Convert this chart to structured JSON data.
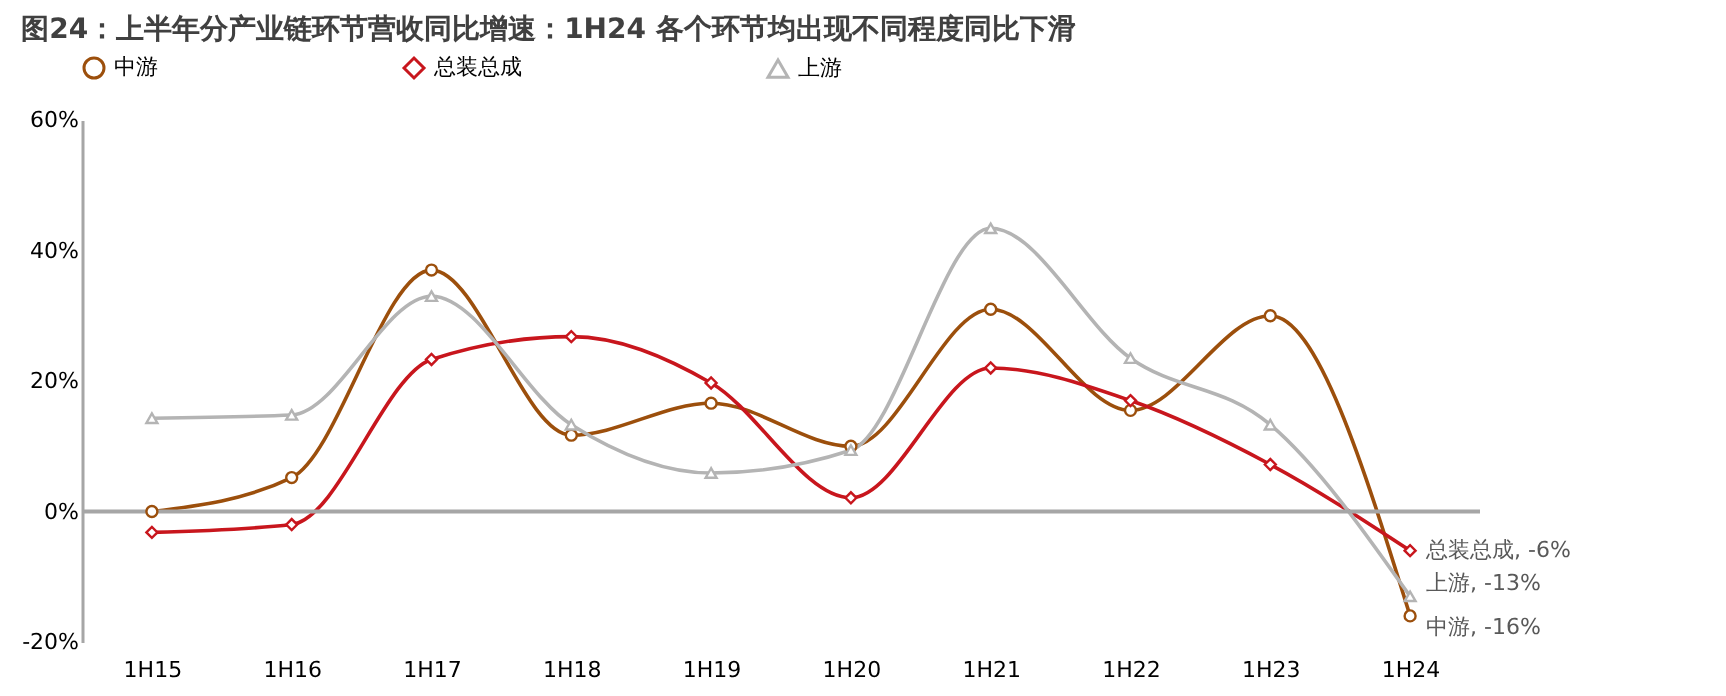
{
  "chart_data": {
    "type": "line",
    "title": "图24：上半年分产业链环节营收同比增速：1H24 各个环节均出现不同程度同比下滑",
    "categories": [
      "1H15",
      "1H16",
      "1H17",
      "1H18",
      "1H19",
      "1H20",
      "1H21",
      "1H22",
      "1H23",
      "1H24"
    ],
    "series": [
      {
        "name": "中游",
        "color": "#9c4f0c",
        "marker": "circle",
        "values": [
          0,
          5.2,
          37,
          11.7,
          16.6,
          10,
          31,
          15.5,
          30,
          -16
        ],
        "value_labels": [
          null,
          null,
          null,
          null,
          null,
          null,
          null,
          null,
          null,
          "中游, -16%"
        ]
      },
      {
        "name": "总装总成",
        "color": "#c8161d",
        "marker": "diamond",
        "values": [
          -3.2,
          -2,
          23.3,
          26.8,
          19.7,
          2.1,
          22,
          17,
          7.2,
          -6
        ],
        "value_labels": [
          null,
          null,
          null,
          null,
          null,
          null,
          null,
          null,
          null,
          "总装总成, -6%"
        ]
      },
      {
        "name": "上游",
        "color": "#b4b4b4",
        "marker": "triangle",
        "values": [
          14.3,
          14.8,
          33,
          13.3,
          5.9,
          9.4,
          43.4,
          23.5,
          13.3,
          -13
        ],
        "value_labels": [
          null,
          null,
          null,
          null,
          null,
          null,
          null,
          null,
          null,
          "上游, -13%"
        ]
      }
    ],
    "ylim": [
      -20,
      60
    ],
    "yticks": [
      {
        "value": -20,
        "label": "-20%"
      },
      {
        "value": 0,
        "label": "0%"
      },
      {
        "value": 20,
        "label": "20%"
      },
      {
        "value": 40,
        "label": "40%"
      },
      {
        "value": 60,
        "label": "60%"
      }
    ],
    "ref_lines": [
      {
        "axis": "y",
        "value": 0,
        "color": "#a6a6a6"
      }
    ],
    "legend": "top",
    "grid": false,
    "line_style": "solid"
  }
}
